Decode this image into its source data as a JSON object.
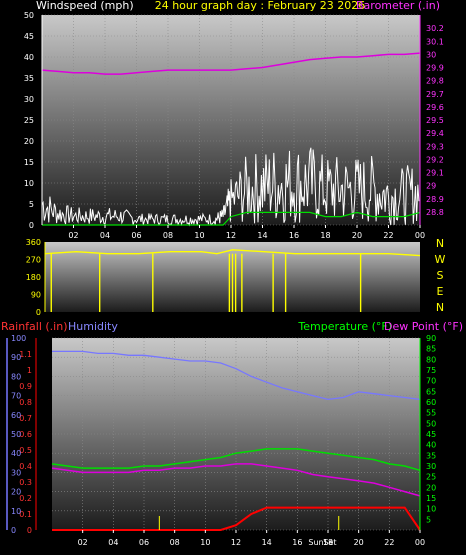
{
  "title": "24 hour graph day : February 23 2026",
  "chart_data": [
    {
      "id": "wind",
      "type": "line",
      "left_label": "Windspeed (mph)",
      "right_label": "Barometer (.in)",
      "ylim": [
        0,
        50
      ],
      "yticks": [
        0,
        5,
        10,
        15,
        20,
        25,
        30,
        35,
        40,
        45,
        50
      ],
      "y2lim": [
        28.7,
        30.3
      ],
      "y2ticks": [
        "28.8",
        "28.9",
        "29",
        "29.1",
        "29.2",
        "29.3",
        "29.4",
        "29.5",
        "29.6",
        "29.7",
        "29.8",
        "29.9",
        "30",
        "30.1",
        "30.2"
      ],
      "xlim": [
        0,
        24
      ],
      "xticks": [
        "02",
        "04",
        "06",
        "08",
        "10",
        "12",
        "14",
        "16",
        "18",
        "20",
        "22",
        "00"
      ],
      "x": [
        0,
        1,
        2,
        3,
        4,
        5,
        6,
        7,
        8,
        9,
        10,
        11,
        11.5,
        12,
        13,
        14,
        15,
        16,
        17,
        18,
        19,
        20,
        21,
        22,
        23,
        24
      ],
      "series": [
        {
          "name": "Windspeed",
          "color": "#ffffff",
          "values": [
            7,
            4,
            3,
            3,
            3,
            3,
            2,
            2,
            2,
            2,
            2,
            2,
            3,
            8,
            12,
            13,
            14,
            14,
            14,
            12,
            12,
            12,
            12,
            10,
            10,
            11
          ]
        },
        {
          "name": "Wind gust",
          "color": "#00dd00",
          "values": [
            0,
            0,
            0,
            0,
            0,
            0,
            0,
            0,
            0,
            0,
            0,
            0,
            0,
            2,
            3,
            3,
            3,
            3,
            3,
            2,
            2,
            3,
            2,
            2,
            2,
            3
          ]
        },
        {
          "name": "Barometer",
          "axis": "right",
          "color": "#dd00dd",
          "values": [
            29.88,
            29.87,
            29.86,
            29.86,
            29.85,
            29.85,
            29.86,
            29.87,
            29.88,
            29.88,
            29.88,
            29.88,
            29.88,
            29.88,
            29.89,
            29.9,
            29.92,
            29.94,
            29.96,
            29.97,
            29.98,
            29.98,
            29.99,
            30.0,
            30.0,
            30.01
          ]
        }
      ]
    },
    {
      "id": "direction",
      "type": "line",
      "ylim": [
        0,
        360
      ],
      "yticks": [
        0,
        90,
        180,
        270,
        360
      ],
      "compass": [
        "N",
        "W",
        "S",
        "E",
        "N"
      ],
      "xlim": [
        0,
        24
      ],
      "series": [
        {
          "name": "Wind direction",
          "color": "#ffff00",
          "x": [
            0,
            2,
            4,
            6,
            8,
            10,
            11,
            12,
            14,
            16,
            18,
            20,
            22,
            24
          ],
          "values": [
            300,
            310,
            300,
            300,
            310,
            310,
            300,
            320,
            310,
            300,
            300,
            300,
            300,
            290
          ]
        }
      ],
      "north_spikes": [
        0.4,
        3.5,
        6.9,
        11.8,
        12.0,
        12.2,
        12.6,
        14.6,
        15.4,
        20.2
      ]
    },
    {
      "id": "temp",
      "type": "line",
      "left_label": "Rainfall (.in)",
      "left2_label": "Humidity",
      "right_label_a": "Temperature (°F)",
      "right_label_b": "Dew Point (°F)",
      "ylim_rain": [
        0,
        1.2
      ],
      "yticks_rain": [
        "0",
        "0.1",
        "0.2",
        "0.3",
        "0.4",
        "0.5",
        "0.6",
        "0.7",
        "0.8",
        "0.9",
        "1",
        "1.1"
      ],
      "ylim_hum": [
        0,
        100
      ],
      "yticks_hum": [
        0,
        10,
        20,
        30,
        40,
        50,
        60,
        70,
        80,
        90,
        100
      ],
      "ylim_temp": [
        0,
        90
      ],
      "yticks_temp": [
        5,
        10,
        15,
        20,
        25,
        30,
        35,
        40,
        45,
        50,
        55,
        60,
        65,
        70,
        75,
        80,
        85,
        90
      ],
      "xlim": [
        0,
        24
      ],
      "xticks": [
        "02",
        "04",
        "06",
        "08",
        "10",
        "12",
        "14",
        "16",
        "18",
        "20",
        "22",
        "00"
      ],
      "sun_labels": [
        "Sun",
        "Set"
      ],
      "x": [
        0,
        1,
        2,
        3,
        4,
        5,
        6,
        7,
        8,
        9,
        10,
        11,
        12,
        13,
        14,
        15,
        16,
        17,
        18,
        19,
        20,
        21,
        22,
        23,
        24
      ],
      "series": [
        {
          "name": "Humidity",
          "color": "#7777ff",
          "values": [
            93,
            93,
            93,
            92,
            92,
            91,
            91,
            90,
            89,
            88,
            88,
            87,
            84,
            80,
            77,
            74,
            72,
            70,
            68,
            69,
            72,
            71,
            70,
            69,
            68
          ]
        },
        {
          "name": "Temperature",
          "color": "#00dd00",
          "values": [
            31,
            30,
            29,
            29,
            29,
            29,
            30,
            30,
            31,
            32,
            33,
            34,
            36,
            37,
            38,
            38,
            38,
            37,
            36,
            35,
            34,
            33,
            31,
            30,
            28
          ]
        },
        {
          "name": "Dew Point",
          "color": "#dd00dd",
          "values": [
            29,
            28,
            27,
            27,
            27,
            27,
            28,
            28,
            29,
            29,
            30,
            30,
            31,
            31,
            30,
            29,
            28,
            26,
            25,
            24,
            23,
            22,
            20,
            18,
            16
          ]
        },
        {
          "name": "Rainfall",
          "color": "#ff0000",
          "values": [
            0,
            0,
            0,
            0,
            0,
            0,
            0,
            0,
            0,
            0,
            0,
            0,
            0.03,
            0.1,
            0.14,
            0.14,
            0.14,
            0.14,
            0.14,
            0.14,
            0.14,
            0.14,
            0.14,
            0.14,
            0.0
          ]
        }
      ],
      "rain_ticks": [
        7.0,
        18.7
      ]
    }
  ]
}
